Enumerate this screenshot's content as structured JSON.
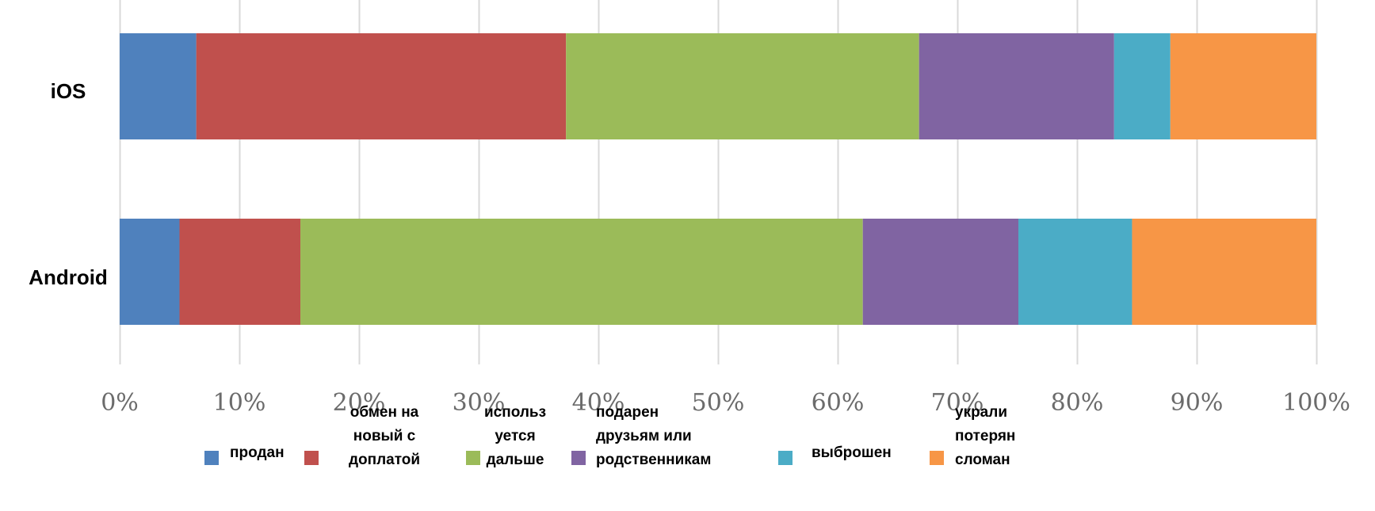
{
  "chart_data": {
    "type": "bar",
    "orientation": "horizontal",
    "stacked": true,
    "normalized": true,
    "title": "",
    "xlabel": "",
    "ylabel": "",
    "categories": [
      "iOS",
      "Android"
    ],
    "xlim": [
      0,
      100
    ],
    "ticks": [
      0,
      10,
      20,
      30,
      40,
      50,
      60,
      70,
      80,
      90,
      100
    ],
    "tick_labels": [
      "0%",
      "10%",
      "20%",
      "30%",
      "40%",
      "50%",
      "60%",
      "70%",
      "80%",
      "90%",
      "100%"
    ],
    "grid": "vertical",
    "legend_position": "bottom",
    "series": [
      {
        "name": "продан",
        "legend_lines": [
          "продан"
        ],
        "color": "#4f81bd",
        "values": [
          6.4,
          5.0
        ]
      },
      {
        "name": "обмен на новый с доплатой",
        "legend_lines": [
          "обмен на",
          "новый с",
          "доплатой"
        ],
        "color": "#c0504d",
        "values": [
          30.9,
          10.1
        ]
      },
      {
        "name": "используется дальше",
        "legend_lines": [
          "использ",
          "уется",
          "дальше"
        ],
        "color": "#9bbb59",
        "values": [
          29.5,
          47.0
        ]
      },
      {
        "name": "подарен друзьям или родственникам",
        "legend_lines": [
          "подарен",
          "друзьям или",
          "родственникам"
        ],
        "color": "#8064a2",
        "values": [
          16.3,
          13.0
        ]
      },
      {
        "name": "выброшен",
        "legend_lines": [
          "выброшен"
        ],
        "color": "#4bacc6",
        "values": [
          4.7,
          9.5
        ]
      },
      {
        "name": "украли потерян сломан",
        "legend_lines": [
          "украли",
          "потерян",
          "сломан"
        ],
        "color": "#f79646",
        "values": [
          12.2,
          15.4
        ]
      }
    ]
  }
}
